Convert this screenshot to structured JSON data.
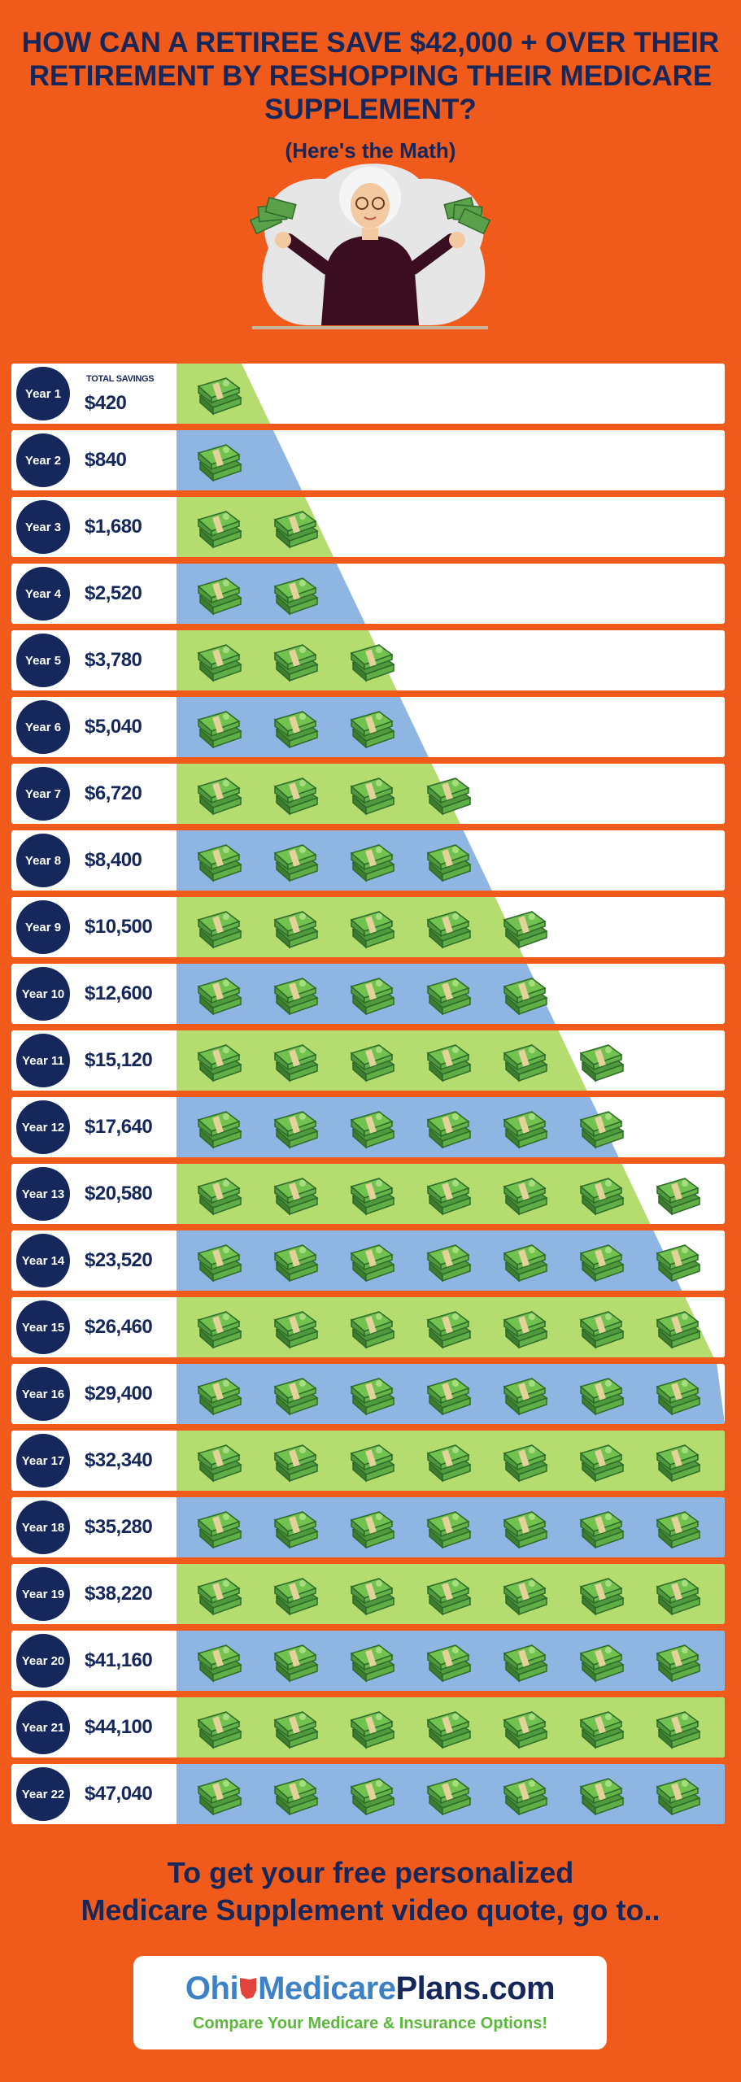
{
  "header": {
    "title": "HOW CAN A RETIREE SAVE $42,000 + OVER THEIR RETIREMENT BY RESHOPPING THEIR MEDICARE SUPPLEMENT?",
    "subtitle": "(Here's the Math)"
  },
  "total_savings_label": "TOTAL SAVINGS",
  "rows": [
    {
      "year": "Year 1",
      "amount": "$420",
      "bills": 1
    },
    {
      "year": "Year 2",
      "amount": "$840",
      "bills": 1
    },
    {
      "year": "Year 3",
      "amount": "$1,680",
      "bills": 2
    },
    {
      "year": "Year 4",
      "amount": "$2,520",
      "bills": 2
    },
    {
      "year": "Year 5",
      "amount": "$3,780",
      "bills": 3
    },
    {
      "year": "Year 6",
      "amount": "$5,040",
      "bills": 3
    },
    {
      "year": "Year 7",
      "amount": "$6,720",
      "bills": 4
    },
    {
      "year": "Year 8",
      "amount": "$8,400",
      "bills": 4
    },
    {
      "year": "Year 9",
      "amount": "$10,500",
      "bills": 5
    },
    {
      "year": "Year 10",
      "amount": "$12,600",
      "bills": 5
    },
    {
      "year": "Year 11",
      "amount": "$15,120",
      "bills": 6
    },
    {
      "year": "Year 12",
      "amount": "$17,640",
      "bills": 6
    },
    {
      "year": "Year 13",
      "amount": "$20,580",
      "bills": 7
    },
    {
      "year": "Year 14",
      "amount": "$23,520",
      "bills": 7
    },
    {
      "year": "Year 15",
      "amount": "$26,460",
      "bills": 7
    },
    {
      "year": "Year 16",
      "amount": "$29,400",
      "bills": 7
    },
    {
      "year": "Year 17",
      "amount": "$32,340",
      "bills": 7
    },
    {
      "year": "Year 18",
      "amount": "$35,280",
      "bills": 7
    },
    {
      "year": "Year 19",
      "amount": "$38,220",
      "bills": 7
    },
    {
      "year": "Year 20",
      "amount": "$41,160",
      "bills": 7
    },
    {
      "year": "Year 21",
      "amount": "$44,100",
      "bills": 7
    },
    {
      "year": "Year 22",
      "amount": "$47,040",
      "bills": 7
    }
  ],
  "footer": {
    "line1": "To get your free personalized",
    "line2": "Medicare Supplement video quote, go to.."
  },
  "logo": {
    "part1": "Ohi",
    "part2": "Medicare",
    "part3": "Plans.com",
    "tagline": "Compare Your Medicare & Insurance Options!"
  },
  "colors": {
    "background": "#f05a1a",
    "navy": "#15275b",
    "green_band": "#b5dc6e",
    "blue_band": "#8fb6e3",
    "logo_blue": "#3d82c4",
    "logo_green": "#5cb83b"
  },
  "icons": {
    "bill_stack": "money-stack-icon",
    "ohio_state": "ohio-state-icon"
  }
}
